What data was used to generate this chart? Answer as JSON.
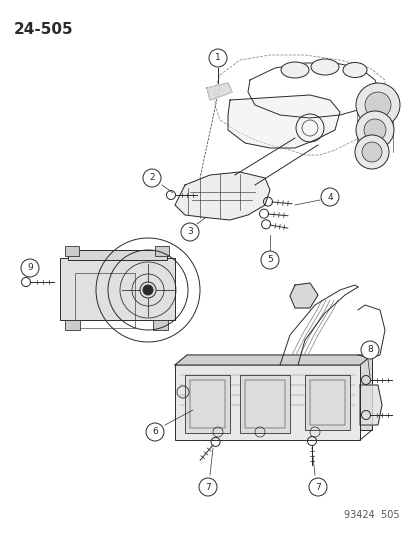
{
  "title_label": "24-505",
  "footer_label": "93424  505",
  "bg_color": "#ffffff",
  "line_color": "#2a2a2a",
  "light_line": "#888888",
  "title_fontsize": 11,
  "footer_fontsize": 7,
  "fig_width": 4.14,
  "fig_height": 5.33,
  "dpi": 100
}
